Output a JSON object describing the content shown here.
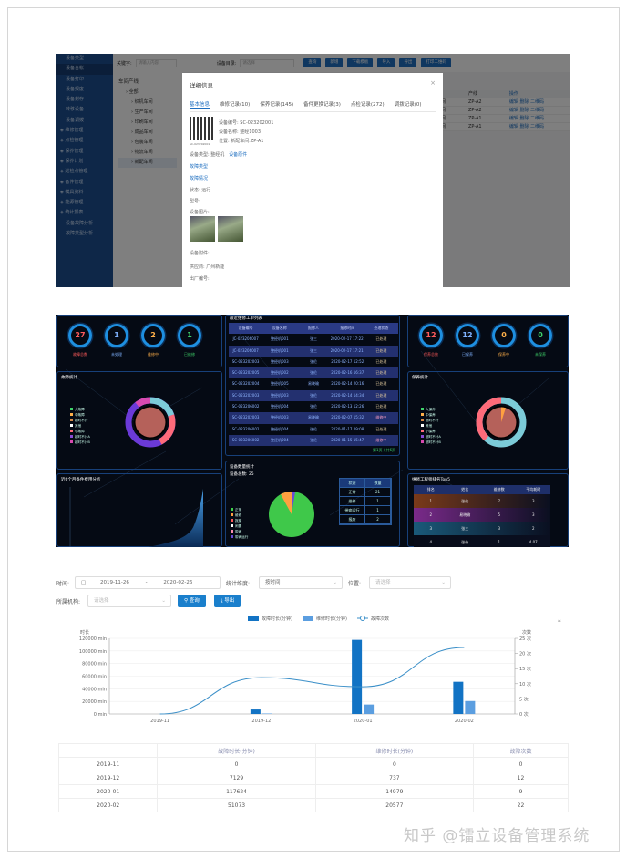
{
  "equipment_admin": {
    "sidebar": [
      {
        "label": "设备类型"
      },
      {
        "label": "设备台帐",
        "active": true
      },
      {
        "label": "设备打印"
      },
      {
        "label": "设备报废"
      },
      {
        "label": "设备封存"
      },
      {
        "label": "转移设备"
      },
      {
        "label": "设备调拨"
      },
      {
        "label": "维修管理",
        "group": true
      },
      {
        "label": "点检管理",
        "group": true
      },
      {
        "label": "保养管理",
        "group": true
      },
      {
        "label": "保养计划",
        "group": true
      },
      {
        "label": "巡检点管理",
        "group": true
      },
      {
        "label": "备件管理",
        "group": true
      },
      {
        "label": "模具资料",
        "group": true
      },
      {
        "label": "能源管理",
        "group": true
      },
      {
        "label": "统计报表",
        "group": true
      },
      {
        "label": "设备故障分析"
      },
      {
        "label": "故障类型分析"
      }
    ],
    "toolbar": {
      "keyword_label": "关键字:",
      "keyword_placeholder": "请输入内容",
      "category_label": "设备目录:",
      "category_placeholder": "请选择",
      "buttons": [
        "查询",
        "新增",
        "下载模板",
        "导入",
        "导出",
        "打印二维码"
      ]
    },
    "tree": {
      "title": "车间产线",
      "items": [
        "全部",
        "织机车间",
        "生产车间",
        "印刷车间",
        "成品车间",
        "包装车间",
        "物流车间",
        "新配车间"
      ],
      "selected": "新配车间"
    },
    "table": {
      "headers": [
        "车间",
        "产线",
        "操作"
      ],
      "rows": [
        [
          "新配车间",
          "ZP-A2",
          "编辑 删除 二维码"
        ],
        [
          "新配车间",
          "ZP-A2",
          "编辑 删除 二维码"
        ],
        [
          "新配车间",
          "ZP-A1",
          "编辑 删除 二维码"
        ],
        [
          "新配车间",
          "ZP-A1",
          "编辑 删除 二维码"
        ]
      ]
    },
    "modal": {
      "title": "详细信息",
      "close": "×",
      "tabs": [
        "基本信息",
        "维修记录(10)",
        "保养记录(145)",
        "备件更换记录(3)",
        "点检记录(272)",
        "调拨记录(0)"
      ],
      "qr_caption": "SC-023202001",
      "code": "设备编号: SC-023202001",
      "name": "设备名称: 整经1003",
      "location": "位置: 新配车间.ZP-A1",
      "type": "设备类型: 整经机",
      "type_link": "设备原件",
      "fault_type": "故障类型",
      "fault_status": "故障情况",
      "status": "状态: 运行",
      "model": "型号:",
      "pictures": "设备图片:",
      "attachments": "设备附件:",
      "supplier": "供应商: 广州新能",
      "serial": "出厂编号:"
    }
  },
  "dashboard": {
    "fault_rings": [
      {
        "value": "27",
        "label": "故障总数",
        "color": "#ff5b5b"
      },
      {
        "value": "1",
        "label": "未处理",
        "color": "#7fb2ff"
      },
      {
        "value": "2",
        "label": "维修中",
        "color": "#ffb04a"
      },
      {
        "value": "1",
        "label": "已维修",
        "color": "#3fd36a"
      }
    ],
    "maint_rings": [
      {
        "value": "12",
        "label": "保养总数",
        "color": "#ff5b5b"
      },
      {
        "value": "12",
        "label": "已保养",
        "color": "#7fb2ff"
      },
      {
        "value": "0",
        "label": "保养中",
        "color": "#ffb04a"
      },
      {
        "value": "0",
        "label": "未保养",
        "color": "#3fd36a"
      }
    ],
    "orders": {
      "title": "最近维修工单列表",
      "headers": [
        "设备编号",
        "设备名称",
        "报修人",
        "报修时间",
        "处理状态"
      ],
      "rows": [
        [
          "JC-023206007",
          "整经机001",
          "张三",
          "2020-02-17 17:22:41",
          "已处理"
        ],
        [
          "JC-023206007",
          "整经机001",
          "张三",
          "2020-02-17 17:21:55",
          "已处理"
        ],
        [
          "SC-023202003",
          "整经机003",
          "张伦",
          "2020-02-17 12:52",
          "已处理"
        ],
        [
          "SC-023202005",
          "整经机002",
          "张伦",
          "2020-02-16 16:37",
          "已处理"
        ],
        [
          "SC-023202004",
          "整经机005",
          "易晓瑜",
          "2020-02-14 20:16",
          "已处理"
        ],
        [
          "SC-023202003",
          "整经机003",
          "张伦",
          "2020-02-14 14:34",
          "已处理"
        ],
        [
          "SC-023206002",
          "整经机004",
          "张伦",
          "2020-02-13 12:26",
          "已处理"
        ],
        [
          "SC-023202003",
          "整经机003",
          "易晓瑜",
          "2020-02-07 15:32",
          "维修中"
        ],
        [
          "SC-023206002",
          "整经机004",
          "张伦",
          "2020-01-17 09:08",
          "已处理"
        ],
        [
          "SC-023206002",
          "整经机004",
          "张伦",
          "2020-01-15 15:47",
          "维修中"
        ]
      ],
      "pager": "第1页 / 共6页"
    },
    "fault_stats": {
      "title": "故障统计",
      "legend": [
        {
          "name": "大故障",
          "color": "#3fd36a"
        },
        {
          "name": "中故障",
          "color": "#ffb04a"
        },
        {
          "name": "超时不计",
          "color": "#d88a4a"
        },
        {
          "name": "其他",
          "color": "#ffffff"
        },
        {
          "name": "小故障",
          "color": "#ff6b7a"
        },
        {
          "name": "超时不计A",
          "color": "#8a4ad8"
        },
        {
          "name": "超时不计B",
          "color": "#d84ab0"
        }
      ]
    },
    "maint_stats": {
      "title": "保养统计",
      "legend": [
        {
          "name": "大保养",
          "color": "#3fd36a"
        },
        {
          "name": "中保养",
          "color": "#ffb04a"
        },
        {
          "name": "超时不计",
          "color": "#d88a4a"
        },
        {
          "name": "其他",
          "color": "#ffffff"
        },
        {
          "name": "小保养",
          "color": "#ff6b7a"
        },
        {
          "name": "超时不计A",
          "color": "#8a4ad8"
        },
        {
          "name": "超时不计B",
          "color": "#d84ab0"
        }
      ]
    },
    "parts_cost": {
      "title": "近6个月备件费用分析"
    },
    "equip_count": {
      "title": "设备数量统计",
      "total": "设备总数: 25",
      "legend": [
        {
          "name": "正常",
          "color": "#3fd34a"
        },
        {
          "name": "维修",
          "color": "#ffa040"
        },
        {
          "name": "报废",
          "color": "#ff5b5b"
        },
        {
          "name": "闲置",
          "color": "#ffffff"
        },
        {
          "name": "带病",
          "color": "#ff8fb0"
        },
        {
          "name": "带病运行",
          "color": "#6a4ad8"
        }
      ],
      "table_headers": [
        "状态",
        "数量"
      ],
      "table_rows": [
        [
          "正常",
          "21"
        ],
        [
          "维修",
          "1"
        ],
        [
          "带病运行",
          "1"
        ],
        [
          "报废",
          "2"
        ]
      ]
    },
    "ranking": {
      "title": "维修工程师排名Top5",
      "headers": [
        "排名",
        "姓名",
        "维修数",
        "平均耗时"
      ],
      "rows": [
        {
          "cells": [
            "1",
            "张伦",
            "7",
            "3"
          ],
          "color": "#7a3a1a"
        },
        {
          "cells": [
            "2",
            "易晓瑜",
            "5",
            "3"
          ],
          "color": "#7a2a8a"
        },
        {
          "cells": [
            "3",
            "张三",
            "3",
            "2"
          ],
          "color": "#1a5a7a"
        },
        {
          "cells": [
            "4",
            "张伟",
            "1",
            "4.07"
          ],
          "color": "#070b18"
        }
      ]
    }
  },
  "report": {
    "filters": {
      "time_label": "时间:",
      "start": "2019-11-26",
      "sep": "-",
      "end": "2020-02-26",
      "granularity_label": "统计维度:",
      "granularity": "按时间",
      "location_label": "位置:",
      "location_placeholder": "请选择",
      "org_label": "所属机构:",
      "org_placeholder": "请选择",
      "query": "查询",
      "export": "导出"
    },
    "download_icon": "download-icon"
  },
  "chart_data": {
    "type": "bar",
    "categories": [
      "2019-11",
      "2019-12",
      "2020-01",
      "2020-02"
    ],
    "series": [
      {
        "name": "故障时长(分钟)",
        "type": "bar",
        "axis": "left",
        "values": [
          0,
          7129,
          117624,
          51073
        ],
        "color": "#1273c4"
      },
      {
        "name": "维修时长(分钟)",
        "type": "bar",
        "axis": "left",
        "values": [
          0,
          737,
          14979,
          20577
        ],
        "color": "#5b9ee0"
      },
      {
        "name": "故障次数",
        "type": "line",
        "axis": "right",
        "values": [
          0,
          12,
          9,
          22
        ],
        "color": "#3a8fc8"
      }
    ],
    "ylabel": "时长",
    "y2label": "次数",
    "ylim": [
      0,
      120000
    ],
    "yticks": [
      "0 min",
      "20000 min",
      "40000 min",
      "60000 min",
      "80000 min",
      "100000 min",
      "120000 min"
    ],
    "y2lim": [
      0,
      25
    ],
    "y2ticks": [
      "0 次",
      "5 次",
      "10 次",
      "15 次",
      "20 次",
      "25 次"
    ],
    "grid": true,
    "legend": "top-center"
  },
  "table": {
    "headers": [
      "",
      "故障时长(分钟)",
      "维修时长(分钟)",
      "故障次数"
    ],
    "rows": [
      [
        "2019-11",
        "0",
        "0",
        "0"
      ],
      [
        "2019-12",
        "7129",
        "737",
        "12"
      ],
      [
        "2020-01",
        "117624",
        "14979",
        "9"
      ],
      [
        "2020-02",
        "51073",
        "20577",
        "22"
      ]
    ]
  },
  "watermark": "知乎 @镭立设备管理系统"
}
